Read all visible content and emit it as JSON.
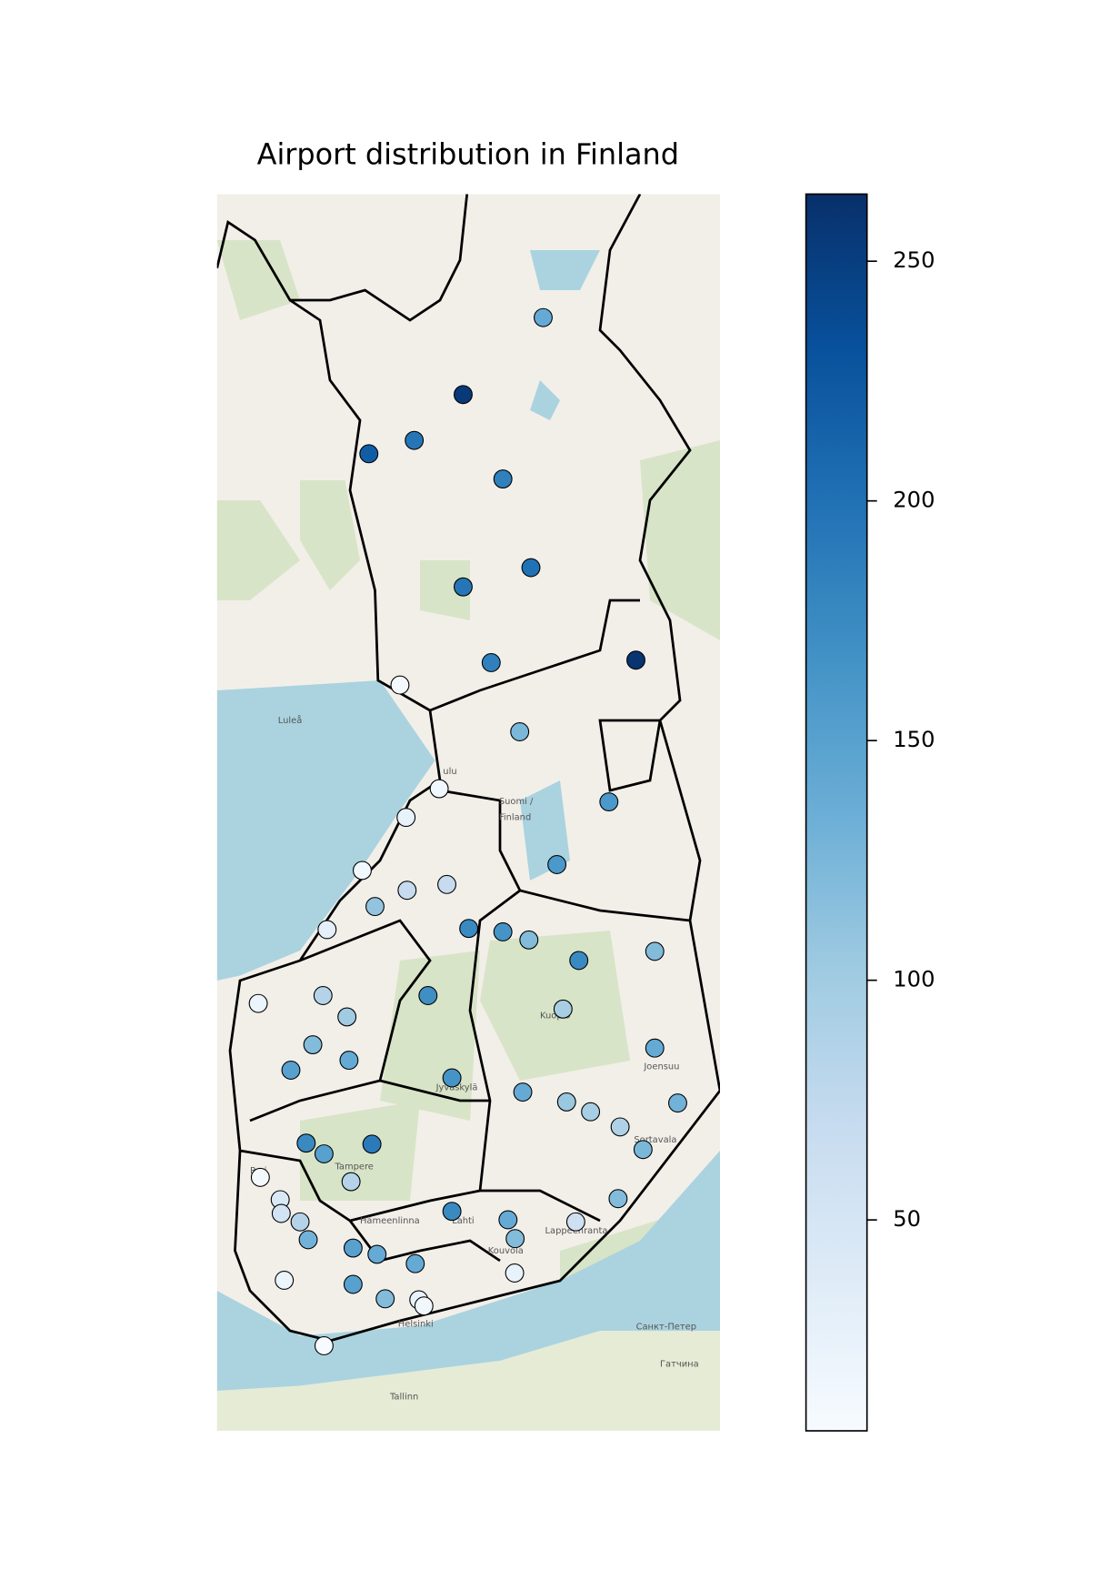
{
  "chart_data": {
    "type": "scatter",
    "title": "Airport distribution in Finland",
    "projection": "mercator",
    "xlim": [
      21.08,
      30.95
    ],
    "ylim": [
      58.94,
      69.37
    ],
    "x": [
      27.48,
      25.91,
      24.95,
      24.06,
      26.69,
      27.24,
      25.91,
      29.3,
      26.46,
      24.67,
      27.02,
      25.44,
      28.77,
      24.79,
      27.75,
      23.93,
      24.81,
      25.59,
      24.18,
      26.02,
      26.69,
      27.2,
      23.24,
      29.67,
      28.18,
      21.89,
      23.16,
      25.22,
      23.63,
      27.87,
      22.96,
      23.67,
      22.53,
      29.67,
      25.69,
      27.08,
      27.94,
      28.41,
      30.12,
      28.99,
      22.83,
      24.12,
      23.18,
      29.44,
      21.93,
      23.71,
      22.32,
      22.34,
      28.95,
      22.71,
      25.69,
      26.79,
      28.12,
      22.87,
      26.93,
      23.75,
      24.22,
      24.97,
      23.75,
      22.4,
      26.92,
      24.38,
      25.04,
      25.14,
      23.18
    ],
    "y": [
      68.5,
      67.94,
      67.6,
      67.5,
      67.31,
      66.63,
      66.48,
      65.9,
      65.88,
      65.7,
      65.32,
      64.85,
      64.74,
      64.61,
      64.21,
      64.16,
      63.99,
      64.04,
      63.85,
      63.66,
      63.63,
      63.56,
      63.65,
      63.46,
      63.38,
      63.0,
      63.07,
      63.07,
      62.88,
      62.95,
      62.63,
      62.49,
      62.4,
      62.6,
      62.33,
      62.2,
      62.11,
      62.02,
      62.1,
      61.88,
      61.73,
      61.72,
      61.63,
      61.67,
      61.41,
      61.37,
      61.2,
      61.07,
      61.21,
      60.99,
      61.09,
      61.01,
      60.99,
      60.82,
      60.83,
      60.74,
      60.68,
      60.59,
      60.39,
      60.43,
      60.5,
      60.25,
      60.24,
      60.18,
      59.79
    ],
    "values": [
      140,
      255,
      195,
      220,
      185,
      200,
      195,
      260,
      185,
      10,
      125,
      15,
      160,
      25,
      160,
      15,
      70,
      70,
      110,
      175,
      165,
      120,
      30,
      120,
      175,
      20,
      85,
      170,
      100,
      95,
      120,
      140,
      150,
      140,
      165,
      140,
      105,
      95,
      130,
      90,
      175,
      190,
      150,
      125,
      10,
      85,
      45,
      55,
      120,
      85,
      175,
      140,
      60,
      130,
      120,
      150,
      140,
      140,
      150,
      20,
      25,
      120,
      25,
      15,
      5
    ],
    "colormap": "Blues",
    "colorbar": {
      "lim": [
        6,
        264
      ],
      "ticks": [
        50,
        100,
        150,
        200,
        250
      ]
    },
    "annotations": [
      "Luleå",
      "ulu",
      "Suomi /",
      "Finland",
      "Kuopio",
      "Joensuu",
      "Jyväskylä",
      "Tampere",
      "Pori",
      "Lahti",
      "Kouvola",
      "Lappeenranta",
      "Hämeenlinna",
      "Helsinki",
      "Tallinn",
      "Санкт-Петер",
      "Гатчина",
      "Sortavala"
    ]
  }
}
